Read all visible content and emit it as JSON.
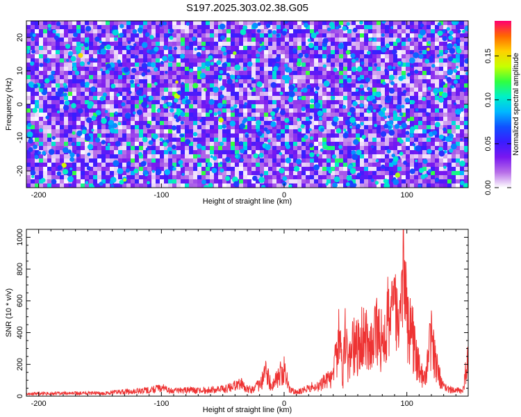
{
  "chart_data": [
    {
      "type": "heatmap",
      "title": "S197.2025.303.02.38.G05",
      "xlabel": "Height of straight line (km)",
      "ylabel": "Frequency (Hz)",
      "xlim": [
        -210,
        150
      ],
      "ylim": [
        -25,
        25
      ],
      "xticks": [
        -200,
        -100,
        0,
        100
      ],
      "yticks": [
        -20,
        -10,
        0,
        10,
        20
      ],
      "colorbar": {
        "label": "Normalized spectral amplitude",
        "range": [
          0,
          0.19
        ],
        "ticks": [
          "0.00",
          "0.05",
          "0.10",
          "0.15"
        ],
        "tick_values": [
          0,
          0.05,
          0.1,
          0.15
        ],
        "colormap": [
          "#ffffff",
          "#b870e8",
          "#7a18f0",
          "#3a1cff",
          "#1050ff",
          "#00b8ff",
          "#00f0c8",
          "#30ff40",
          "#c8ff00",
          "#ffd000",
          "#ff6800",
          "#ff0070"
        ]
      },
      "background_level": 0.03,
      "peak_level": 0.18
    },
    {
      "type": "line",
      "xlabel": "Height of straight line (km)",
      "ylabel": "SNR (10 * v/v)",
      "xlim": [
        -210,
        150
      ],
      "ylim": [
        0,
        1050
      ],
      "xticks": [
        -200,
        -100,
        0,
        100
      ],
      "yticks": [
        0,
        200,
        400,
        600,
        800,
        1000
      ],
      "color": "#ee3333",
      "x": [
        -210,
        -180,
        -150,
        -130,
        -110,
        -100,
        -90,
        -80,
        -70,
        -60,
        -50,
        -40,
        -35,
        -30,
        -25,
        -20,
        -15,
        -10,
        -5,
        0,
        5,
        10,
        20,
        30,
        40,
        45,
        48,
        50,
        52,
        55,
        60,
        65,
        70,
        75,
        80,
        85,
        90,
        95,
        97,
        100,
        105,
        110,
        115,
        120,
        122,
        125,
        130,
        140,
        145,
        150
      ],
      "values": [
        25,
        28,
        30,
        45,
        60,
        80,
        50,
        60,
        55,
        65,
        70,
        100,
        120,
        80,
        60,
        120,
        240,
        100,
        200,
        250,
        60,
        40,
        80,
        120,
        200,
        610,
        180,
        760,
        250,
        520,
        480,
        700,
        420,
        630,
        560,
        780,
        800,
        650,
        1050,
        800,
        560,
        280,
        150,
        600,
        450,
        250,
        80,
        60,
        50,
        350
      ]
    }
  ]
}
